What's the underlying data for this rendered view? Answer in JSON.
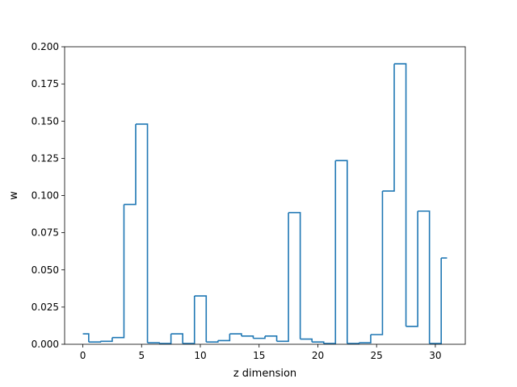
{
  "chart_data": {
    "type": "line",
    "style": "step",
    "title": "",
    "xlabel": "z dimension",
    "ylabel": "w",
    "xlim": [
      -1.55,
      32.55
    ],
    "ylim": [
      0,
      0.2
    ],
    "x_ticks": [
      {
        "value": 0,
        "label": "0"
      },
      {
        "value": 5,
        "label": "5"
      },
      {
        "value": 10,
        "label": "10"
      },
      {
        "value": 15,
        "label": "15"
      },
      {
        "value": 20,
        "label": "20"
      },
      {
        "value": 25,
        "label": "25"
      },
      {
        "value": 30,
        "label": "30"
      }
    ],
    "y_ticks": [
      {
        "value": 0.0,
        "label": "0.000"
      },
      {
        "value": 0.025,
        "label": "0.025"
      },
      {
        "value": 0.05,
        "label": "0.050"
      },
      {
        "value": 0.075,
        "label": "0.075"
      },
      {
        "value": 0.1,
        "label": "0.100"
      },
      {
        "value": 0.125,
        "label": "0.125"
      },
      {
        "value": 0.15,
        "label": "0.150"
      },
      {
        "value": 0.175,
        "label": "0.175"
      },
      {
        "value": 0.2,
        "label": "0.200"
      }
    ],
    "grid": false,
    "legend": "none",
    "color": "#1f77b4",
    "x": [
      0,
      1,
      2,
      3,
      4,
      5,
      6,
      7,
      8,
      9,
      10,
      11,
      12,
      13,
      14,
      15,
      16,
      17,
      18,
      19,
      20,
      21,
      22,
      23,
      24,
      25,
      26,
      27,
      28,
      29,
      30,
      31
    ],
    "values": [
      0.007,
      0.0015,
      0.002,
      0.0045,
      0.094,
      0.148,
      0.001,
      0.0005,
      0.007,
      0.0005,
      0.0325,
      0.0015,
      0.0025,
      0.007,
      0.0055,
      0.004,
      0.0055,
      0.002,
      0.0885,
      0.0035,
      0.0015,
      0.0005,
      0.1235,
      0.0005,
      0.001,
      0.0065,
      0.103,
      0.1885,
      0.012,
      0.0895,
      0.0005,
      0.058
    ]
  }
}
